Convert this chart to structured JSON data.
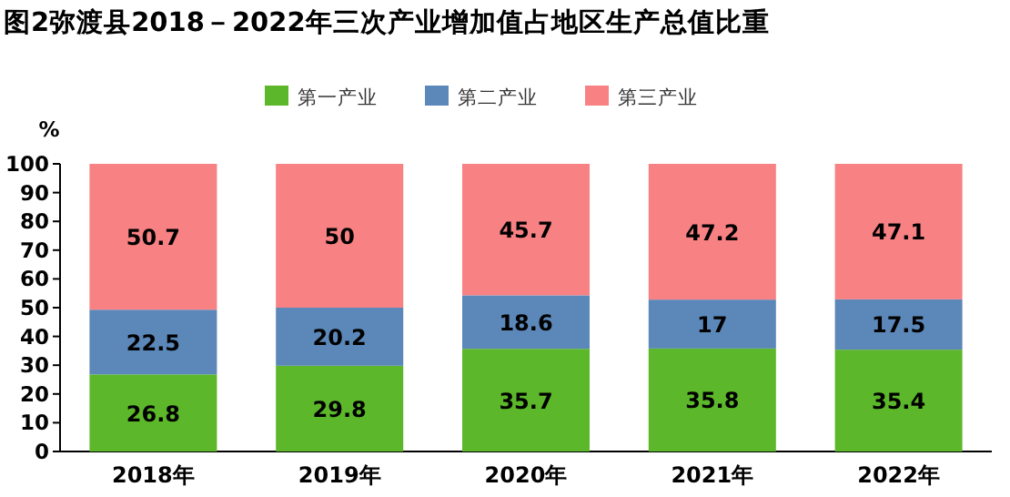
{
  "chart_data": {
    "type": "bar",
    "title": "图2弥渡县2018－2022年三次产业增加值占地区生产总值比重",
    "ylabel": "%",
    "categories": [
      "2018年",
      "2019年",
      "2020年",
      "2021年",
      "2022年"
    ],
    "series": [
      {
        "name": "第一产业",
        "color": "#5cb82a",
        "values": [
          26.8,
          29.8,
          35.7,
          35.8,
          35.4
        ]
      },
      {
        "name": "第二产业",
        "color": "#5b87b9",
        "values": [
          22.5,
          20.2,
          18.6,
          17,
          17.5
        ]
      },
      {
        "name": "第三产业",
        "color": "#f78183",
        "values": [
          50.7,
          50,
          45.7,
          47.2,
          47.1
        ]
      }
    ],
    "stacked": true,
    "ylim": [
      0,
      100
    ],
    "yticks": [
      0,
      10,
      20,
      30,
      40,
      50,
      60,
      70,
      80,
      90,
      100
    ],
    "data_labels": true,
    "legend": "top",
    "grid": false
  }
}
